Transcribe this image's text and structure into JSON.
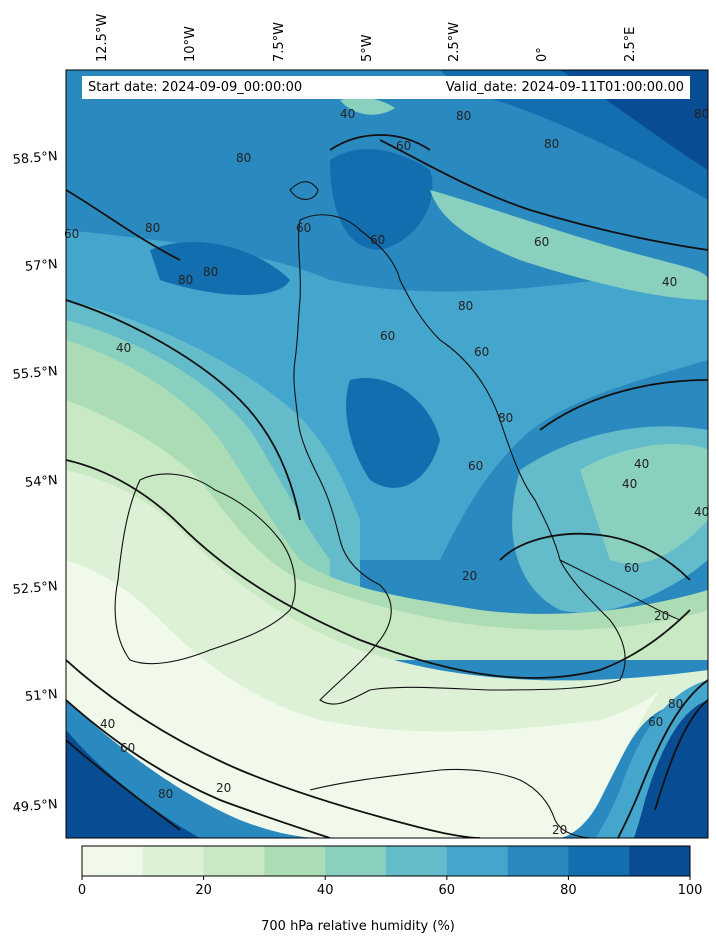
{
  "header": {
    "start_date": "Start date: 2024-09-09_00:00:00",
    "valid_date": "Valid_date: 2024-09-11T01:00:00.00"
  },
  "map": {
    "longitude_labels": [
      "12.5°W",
      "10°W",
      "7.5°W",
      "5°W",
      "2.5°W",
      "0°",
      "2.5°E"
    ],
    "latitude_labels": [
      "58.5°N",
      "57°N",
      "55.5°N",
      "54°N",
      "52.5°N",
      "51°N",
      "49.5°N"
    ],
    "contour_levels": [
      "20",
      "40",
      "60",
      "80"
    ],
    "contour_labels": [
      {
        "text": "40"
      },
      {
        "text": "60"
      },
      {
        "text": "80"
      },
      {
        "text": "80"
      },
      {
        "text": "80"
      },
      {
        "text": "60"
      },
      {
        "text": "80"
      },
      {
        "text": "80"
      },
      {
        "text": "80"
      },
      {
        "text": "60"
      },
      {
        "text": "60"
      },
      {
        "text": "40"
      },
      {
        "text": "40"
      },
      {
        "text": "60"
      },
      {
        "text": "80"
      },
      {
        "text": "60"
      },
      {
        "text": "40"
      },
      {
        "text": "40"
      },
      {
        "text": "40"
      },
      {
        "text": "20"
      },
      {
        "text": "60"
      },
      {
        "text": "20"
      },
      {
        "text": "40"
      },
      {
        "text": "60"
      },
      {
        "text": "80"
      },
      {
        "text": "20"
      },
      {
        "text": "20"
      },
      {
        "text": "60"
      },
      {
        "text": "80"
      },
      {
        "text": "60"
      },
      {
        "text": "60"
      },
      {
        "text": "80"
      },
      {
        "text": "80"
      }
    ]
  },
  "colorbar": {
    "ticks": [
      "0",
      "20",
      "40",
      "60",
      "80",
      "100"
    ],
    "label": "700 hPa relative humidity (%)",
    "colors": [
      "#f1f9ea",
      "#dcf1d5",
      "#c9e9c4",
      "#abdcb6",
      "#8ad0be",
      "#64bcca",
      "#44a6cd",
      "#2a8ac0",
      "#136eb0",
      "#084c93"
    ]
  }
}
